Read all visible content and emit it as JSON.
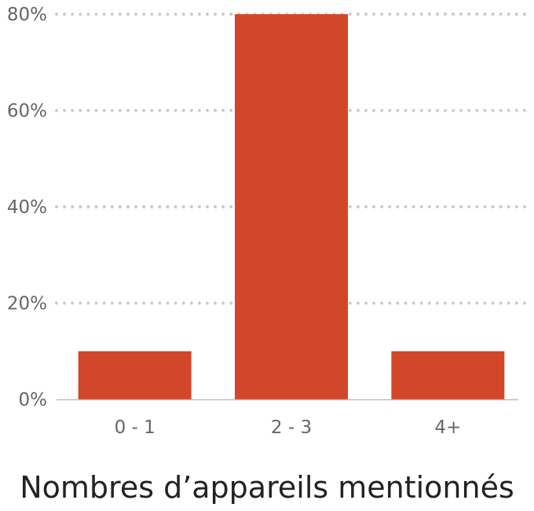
{
  "chart_data": {
    "type": "bar",
    "categories": [
      "0 - 1",
      "2 - 3",
      "4+"
    ],
    "values": [
      10,
      80,
      10
    ],
    "title": "",
    "xlabel": "Nombres d’appareils mentionnés",
    "ylabel": "",
    "ylim": [
      0,
      80
    ],
    "yticks": [
      0,
      20,
      40,
      60,
      80
    ],
    "ytick_labels": [
      "0%",
      "20%",
      "40%",
      "60%",
      "80%"
    ],
    "grid": true,
    "grid_style": "dotted",
    "legend": "none",
    "colors": {
      "bar": "#d2472a",
      "grid": "#cccccc",
      "axis": "#bbbbbb",
      "tick_text": "#666666",
      "title_text": "#222222"
    }
  }
}
